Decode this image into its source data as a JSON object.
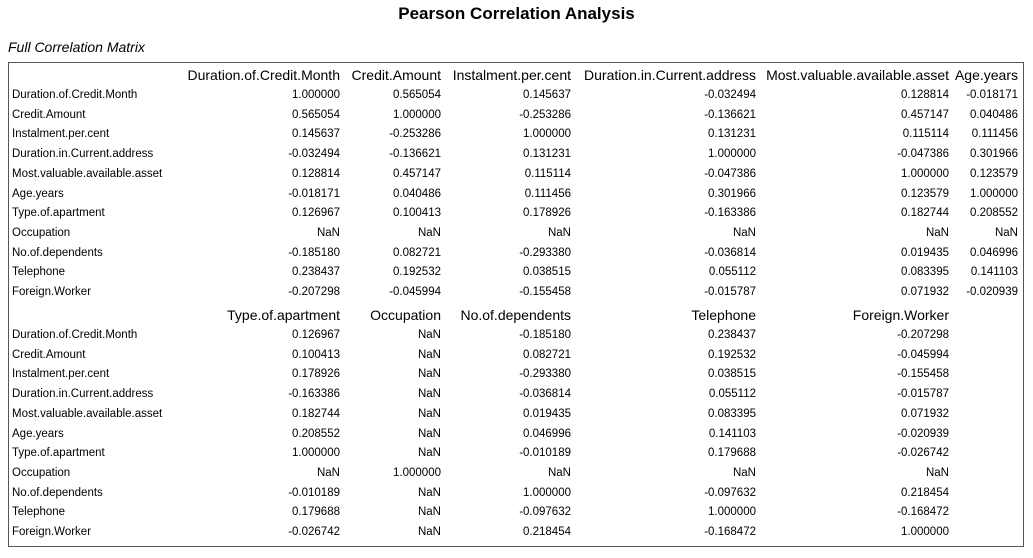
{
  "title": "Pearson Correlation Analysis",
  "subtitle": "Full Correlation Matrix",
  "blocks": [
    {
      "headers": [
        "Duration.of.Credit.Month",
        "Credit.Amount",
        "Instalment.per.cent",
        "Duration.in.Current.address",
        "Most.valuable.available.asset",
        "Age.years"
      ],
      "rows": [
        {
          "label": "Duration.of.Credit.Month",
          "cells": [
            "1.000000",
            "0.565054",
            "0.145637",
            "-0.032494",
            "0.128814",
            "-0.018171"
          ]
        },
        {
          "label": "Credit.Amount",
          "cells": [
            "0.565054",
            "1.000000",
            "-0.253286",
            "-0.136621",
            "0.457147",
            "0.040486"
          ]
        },
        {
          "label": "Instalment.per.cent",
          "cells": [
            "0.145637",
            "-0.253286",
            "1.000000",
            "0.131231",
            "0.115114",
            "0.111456"
          ]
        },
        {
          "label": "Duration.in.Current.address",
          "cells": [
            "-0.032494",
            "-0.136621",
            "0.131231",
            "1.000000",
            "-0.047386",
            "0.301966"
          ]
        },
        {
          "label": "Most.valuable.available.asset",
          "cells": [
            "0.128814",
            "0.457147",
            "0.115114",
            "-0.047386",
            "1.000000",
            "0.123579"
          ]
        },
        {
          "label": "Age.years",
          "cells": [
            "-0.018171",
            "0.040486",
            "0.111456",
            "0.301966",
            "0.123579",
            "1.000000"
          ]
        },
        {
          "label": "Type.of.apartment",
          "cells": [
            "0.126967",
            "0.100413",
            "0.178926",
            "-0.163386",
            "0.182744",
            "0.208552"
          ]
        },
        {
          "label": "Occupation",
          "cells": [
            "NaN",
            "NaN",
            "NaN",
            "NaN",
            "NaN",
            "NaN"
          ]
        },
        {
          "label": "No.of.dependents",
          "cells": [
            "-0.185180",
            "0.082721",
            "-0.293380",
            "-0.036814",
            "0.019435",
            "0.046996"
          ]
        },
        {
          "label": "Telephone",
          "cells": [
            "0.238437",
            "0.192532",
            "0.038515",
            "0.055112",
            "0.083395",
            "0.141103"
          ]
        },
        {
          "label": "Foreign.Worker",
          "cells": [
            "-0.207298",
            "-0.045994",
            "-0.155458",
            "-0.015787",
            "0.071932",
            "-0.020939"
          ]
        }
      ]
    },
    {
      "headers": [
        "Type.of.apartment",
        "Occupation",
        "No.of.dependents",
        "Telephone",
        "Foreign.Worker"
      ],
      "rows": [
        {
          "label": "Duration.of.Credit.Month",
          "cells": [
            "0.126967",
            "NaN",
            "-0.185180",
            "0.238437",
            "-0.207298"
          ]
        },
        {
          "label": "Credit.Amount",
          "cells": [
            "0.100413",
            "NaN",
            "0.082721",
            "0.192532",
            "-0.045994"
          ]
        },
        {
          "label": "Instalment.per.cent",
          "cells": [
            "0.178926",
            "NaN",
            "-0.293380",
            "0.038515",
            "-0.155458"
          ]
        },
        {
          "label": "Duration.in.Current.address",
          "cells": [
            "-0.163386",
            "NaN",
            "-0.036814",
            "0.055112",
            "-0.015787"
          ]
        },
        {
          "label": "Most.valuable.available.asset",
          "cells": [
            "0.182744",
            "NaN",
            "0.019435",
            "0.083395",
            "0.071932"
          ]
        },
        {
          "label": "Age.years",
          "cells": [
            "0.208552",
            "NaN",
            "0.046996",
            "0.141103",
            "-0.020939"
          ]
        },
        {
          "label": "Type.of.apartment",
          "cells": [
            "1.000000",
            "NaN",
            "-0.010189",
            "0.179688",
            "-0.026742"
          ]
        },
        {
          "label": "Occupation",
          "cells": [
            "NaN",
            "1.000000",
            "NaN",
            "NaN",
            "NaN"
          ]
        },
        {
          "label": "No.of.dependents",
          "cells": [
            "-0.010189",
            "NaN",
            "1.000000",
            "-0.097632",
            "0.218454"
          ]
        },
        {
          "label": "Telephone",
          "cells": [
            "0.179688",
            "NaN",
            "-0.097632",
            "1.000000",
            "-0.168472"
          ]
        },
        {
          "label": "Foreign.Worker",
          "cells": [
            "-0.026742",
            "NaN",
            "0.218454",
            "-0.168472",
            "1.000000"
          ]
        }
      ]
    }
  ]
}
